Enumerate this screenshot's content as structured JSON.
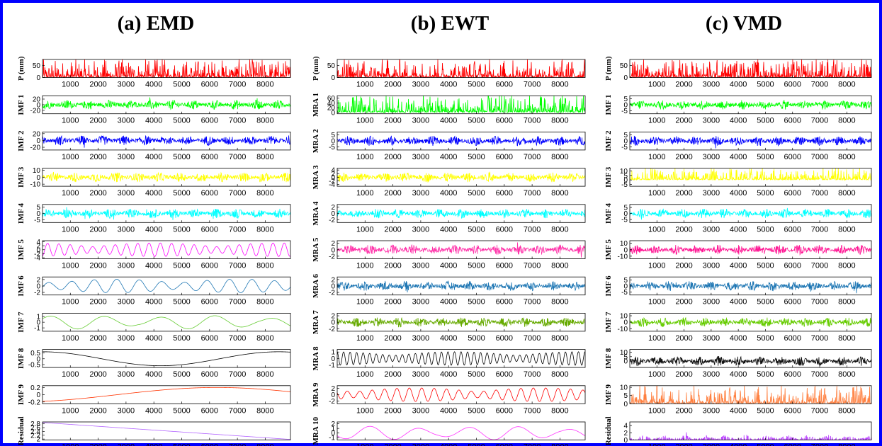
{
  "frame_color": "#0000ff",
  "x_ticks": [
    1000,
    2000,
    3000,
    4000,
    5000,
    6000,
    7000,
    8000
  ],
  "x_range": [
    1,
    8905
  ],
  "chart_data": [
    {
      "type": "line",
      "title": "(a) EMD",
      "series": [
        {
          "name": "P (mm)",
          "color": "#ff0000",
          "kind": "precip",
          "ylim": [
            0,
            75
          ],
          "yticks": [
            {
              "v": 50,
              "label": "50"
            },
            {
              "v": 0,
              "label": "0"
            }
          ],
          "tick_labels": true
        },
        {
          "name": "IMF 1",
          "color": "#00ff00",
          "kind": "noise",
          "ylim": [
            -32,
            32
          ],
          "yticks": [
            {
              "v": 20,
              "label": "20"
            },
            {
              "v": 0,
              "label": "0"
            },
            {
              "v": -20,
              "label": "-20"
            }
          ],
          "tick_labels": true
        },
        {
          "name": "IMF 2",
          "color": "#0000ff",
          "kind": "noise",
          "ylim": [
            -28,
            25
          ],
          "yticks": [
            {
              "v": 20,
              "label": "20"
            },
            {
              "v": 0,
              "label": "0"
            },
            {
              "v": -20,
              "label": "-20"
            }
          ],
          "tick_labels": true
        },
        {
          "name": "IMF 3",
          "color": "#ffff00",
          "kind": "noise",
          "ylim": [
            -13,
            13
          ],
          "yticks": [
            {
              "v": 10,
              "label": "10"
            },
            {
              "v": 0,
              "label": "0"
            },
            {
              "v": -10,
              "label": "-10"
            }
          ],
          "tick_labels": true
        },
        {
          "name": "IMF 4",
          "color": "#00ffff",
          "kind": "noise",
          "ylim": [
            -7,
            7
          ],
          "yticks": [
            {
              "v": 5,
              "label": "5"
            },
            {
              "v": 0,
              "label": "0"
            },
            {
              "v": -5,
              "label": "-5"
            }
          ],
          "tick_labels": true
        },
        {
          "name": "IMF 5",
          "color": "#ff00ff",
          "kind": "wave",
          "ylim": [
            -4.5,
            4.5
          ],
          "yticks": [
            {
              "v": 4,
              "label": "4"
            },
            {
              "v": 2,
              "label": "2"
            },
            {
              "v": 0,
              "label": "0"
            },
            {
              "v": -2,
              "label": "-2"
            },
            {
              "v": -4,
              "label": "-4"
            }
          ],
          "tick_labels": true
        },
        {
          "name": "IMF 6",
          "color": "#1f77b4",
          "kind": "wave",
          "ylim": [
            -2.8,
            2.8
          ],
          "yticks": [
            {
              "v": 2,
              "label": "2"
            },
            {
              "v": 0,
              "label": "0"
            },
            {
              "v": -2,
              "label": "-2"
            }
          ],
          "tick_labels": true
        },
        {
          "name": "IMF 7",
          "color": "#66cc33",
          "kind": "wave",
          "ylim": [
            -1.6,
            1.6
          ],
          "yticks": [
            {
              "v": 1,
              "label": "1"
            },
            {
              "v": 0,
              "label": "0"
            },
            {
              "v": -1,
              "label": "-1"
            }
          ],
          "tick_labels": true
        },
        {
          "name": "IMF 8",
          "color": "#000000",
          "kind": "wave",
          "ylim": [
            -0.75,
            0.8
          ],
          "yticks": [
            {
              "v": 0.5,
              "label": "0.5"
            },
            {
              "v": 0,
              "label": "0"
            },
            {
              "v": -0.5,
              "label": "-0.5"
            }
          ],
          "tick_labels": true
        },
        {
          "name": "IMF 9",
          "color": "#ff3300",
          "kind": "wave",
          "ylim": [
            -0.25,
            0.25
          ],
          "yticks": [
            {
              "v": 0.2,
              "label": "0.2"
            },
            {
              "v": 0,
              "label": "0"
            },
            {
              "v": -0.2,
              "label": "-0.2"
            }
          ],
          "tick_labels": true
        },
        {
          "name": "Residual",
          "color": "#b366ff",
          "kind": "trend",
          "ylim": [
            1.95,
            2.9
          ],
          "yticks": [
            {
              "v": 2.8,
              "label": "2.8"
            },
            {
              "v": 2.6,
              "label": "2.6"
            },
            {
              "v": 2.4,
              "label": "2.4"
            },
            {
              "v": 2.2,
              "label": "2.2"
            },
            {
              "v": 2,
              "label": "2"
            }
          ],
          "tick_labels": true
        }
      ]
    },
    {
      "type": "line",
      "title": "(b) EWT",
      "series": [
        {
          "name": "P (mm)",
          "color": "#ff0000",
          "kind": "precip",
          "ylim": [
            0,
            75
          ],
          "yticks": [
            {
              "v": 50,
              "label": "50"
            },
            {
              "v": 0,
              "label": "0"
            }
          ],
          "tick_labels": true
        },
        {
          "name": "MRA 1",
          "color": "#00ff00",
          "kind": "precip",
          "ylim": [
            -5,
            70
          ],
          "yticks": [
            {
              "v": 60,
              "label": "60"
            },
            {
              "v": 40,
              "label": "40"
            },
            {
              "v": 20,
              "label": "20"
            },
            {
              "v": 0,
              "label": "0"
            }
          ],
          "tick_labels": true
        },
        {
          "name": "MRA 2",
          "color": "#0000ff",
          "kind": "noise",
          "ylim": [
            -7.5,
            7.5
          ],
          "yticks": [
            {
              "v": 5,
              "label": "5"
            },
            {
              "v": 0,
              "label": "0"
            },
            {
              "v": -5,
              "label": "-5"
            }
          ],
          "tick_labels": true
        },
        {
          "name": "MRA 3",
          "color": "#ffff00",
          "kind": "noise",
          "ylim": [
            -5,
            5
          ],
          "yticks": [
            {
              "v": 4,
              "label": "4"
            },
            {
              "v": 2,
              "label": "2"
            },
            {
              "v": 0,
              "label": "0"
            },
            {
              "v": -2,
              "label": "-2"
            },
            {
              "v": -4,
              "label": "-4"
            }
          ],
          "tick_labels": true
        },
        {
          "name": "MRA 4",
          "color": "#00ffff",
          "kind": "noise",
          "ylim": [
            -2.8,
            2.8
          ],
          "yticks": [
            {
              "v": 2,
              "label": "2"
            },
            {
              "v": 0,
              "label": "0"
            },
            {
              "v": -2,
              "label": "-2"
            }
          ],
          "tick_labels": true
        },
        {
          "name": "MRA 5",
          "color": "#ff33aa",
          "kind": "noise",
          "ylim": [
            -2.8,
            2.8
          ],
          "yticks": [
            {
              "v": 2,
              "label": "2"
            },
            {
              "v": 0,
              "label": "0"
            },
            {
              "v": -2,
              "label": "-2"
            }
          ],
          "tick_labels": true
        },
        {
          "name": "MRA 6",
          "color": "#1f77b4",
          "kind": "noise",
          "ylim": [
            -2.8,
            2.8
          ],
          "yticks": [
            {
              "v": 2,
              "label": "2"
            },
            {
              "v": 0,
              "label": "0"
            },
            {
              "v": -2,
              "label": "-2"
            }
          ],
          "tick_labels": true
        },
        {
          "name": "MRA 7",
          "color": "#66aa00",
          "kind": "noise",
          "ylim": [
            -2.8,
            2.8
          ],
          "yticks": [
            {
              "v": 2,
              "label": "2"
            },
            {
              "v": 0,
              "label": "0"
            },
            {
              "v": -2,
              "label": "-2"
            }
          ],
          "tick_labels": true
        },
        {
          "name": "MRA 8",
          "color": "#000000",
          "kind": "wave",
          "ylim": [
            -1.4,
            1.4
          ],
          "yticks": [
            {
              "v": 1,
              "label": "1"
            },
            {
              "v": 0,
              "label": "0"
            },
            {
              "v": -1,
              "label": "-1"
            }
          ],
          "tick_labels": true
        },
        {
          "name": "MRA 9",
          "color": "#ff0000",
          "kind": "wave",
          "ylim": [
            -2.8,
            2.8
          ],
          "yticks": [
            {
              "v": 2,
              "label": "2"
            },
            {
              "v": 0,
              "label": "0"
            },
            {
              "v": -2,
              "label": "-2"
            }
          ],
          "tick_labels": true
        },
        {
          "name": "MRA 10",
          "color": "#ff33ff",
          "kind": "wave",
          "ylim": [
            -1.5,
            2.4
          ],
          "yticks": [
            {
              "v": 2,
              "label": "2"
            },
            {
              "v": 1,
              "label": "1"
            },
            {
              "v": 0,
              "label": "0"
            },
            {
              "v": -1,
              "label": "-1"
            }
          ],
          "tick_labels": true
        }
      ]
    },
    {
      "type": "line",
      "title": "(c) VMD",
      "series": [
        {
          "name": "P (mm)",
          "color": "#ff0000",
          "kind": "precip",
          "ylim": [
            0,
            75
          ],
          "yticks": [
            {
              "v": 50,
              "label": "50"
            },
            {
              "v": 0,
              "label": "0"
            }
          ],
          "tick_labels": true
        },
        {
          "name": "IMF 1",
          "color": "#00ff00",
          "kind": "noise",
          "ylim": [
            -7.5,
            7.5
          ],
          "yticks": [
            {
              "v": 5,
              "label": "5"
            },
            {
              "v": 0,
              "label": "0"
            },
            {
              "v": -5,
              "label": "-5"
            }
          ],
          "tick_labels": true
        },
        {
          "name": "IMF 2",
          "color": "#0000ff",
          "kind": "noise",
          "ylim": [
            -7.5,
            7.5
          ],
          "yticks": [
            {
              "v": 5,
              "label": "5"
            },
            {
              "v": 0,
              "label": "0"
            },
            {
              "v": -5,
              "label": "-5"
            }
          ],
          "tick_labels": true
        },
        {
          "name": "IMF 3",
          "color": "#ffff00",
          "kind": "precip",
          "ylim": [
            -7,
            13
          ],
          "yticks": [
            {
              "v": 10,
              "label": "10"
            },
            {
              "v": 5,
              "label": "5"
            },
            {
              "v": 0,
              "label": "0"
            },
            {
              "v": -5,
              "label": "-5"
            }
          ],
          "tick_labels": true
        },
        {
          "name": "IMF 4",
          "color": "#00ffff",
          "kind": "noise",
          "ylim": [
            -7.5,
            7.5
          ],
          "yticks": [
            {
              "v": 5,
              "label": "5"
            },
            {
              "v": 0,
              "label": "0"
            },
            {
              "v": -5,
              "label": "-5"
            }
          ],
          "tick_labels": true
        },
        {
          "name": "IMF 5",
          "color": "#ff1493",
          "kind": "noise",
          "ylim": [
            -14,
            14
          ],
          "yticks": [
            {
              "v": 10,
              "label": "10"
            },
            {
              "v": 0,
              "label": "0"
            },
            {
              "v": -10,
              "label": "-10"
            }
          ],
          "tick_labels": true
        },
        {
          "name": "IMF 6",
          "color": "#1f77b4",
          "kind": "noise",
          "ylim": [
            -7.5,
            7.5
          ],
          "yticks": [
            {
              "v": 5,
              "label": "5"
            },
            {
              "v": 0,
              "label": "0"
            },
            {
              "v": -5,
              "label": "-5"
            }
          ],
          "tick_labels": true
        },
        {
          "name": "IMF 7",
          "color": "#66cc00",
          "kind": "noise",
          "ylim": [
            -14,
            14
          ],
          "yticks": [
            {
              "v": 10,
              "label": "10"
            },
            {
              "v": 0,
              "label": "0"
            },
            {
              "v": -10,
              "label": "-10"
            }
          ],
          "tick_labels": true
        },
        {
          "name": "IMF 8",
          "color": "#111111",
          "kind": "noise",
          "ylim": [
            -7,
            13
          ],
          "yticks": [
            {
              "v": 10,
              "label": "10"
            },
            {
              "v": 5,
              "label": "5"
            },
            {
              "v": 0,
              "label": "0"
            }
          ],
          "tick_labels": true
        },
        {
          "name": "IMF 9",
          "color": "#ff8040",
          "kind": "precip",
          "ylim": [
            0,
            11
          ],
          "yticks": [
            {
              "v": 10,
              "label": "10"
            },
            {
              "v": 5,
              "label": "5"
            },
            {
              "v": 0,
              "label": "0"
            }
          ],
          "tick_labels": true
        },
        {
          "name": "Residual",
          "color": "#bb44ff",
          "kind": "noise",
          "ylim": [
            0,
            5
          ],
          "yticks": [
            {
              "v": 4,
              "label": "4"
            },
            {
              "v": 2,
              "label": "2"
            },
            {
              "v": 0,
              "label": "0"
            }
          ],
          "tick_labels": true
        }
      ]
    }
  ]
}
